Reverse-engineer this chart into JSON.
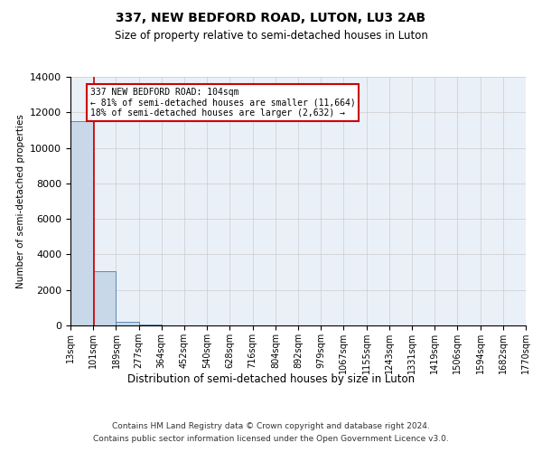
{
  "title": "337, NEW BEDFORD ROAD, LUTON, LU3 2AB",
  "subtitle": "Size of property relative to semi-detached houses in Luton",
  "xlabel": "Distribution of semi-detached houses by size in Luton",
  "ylabel": "Number of semi-detached properties",
  "bin_edges": [
    13,
    101,
    189,
    277,
    364,
    452,
    540,
    628,
    716,
    804,
    892,
    979,
    1067,
    1155,
    1243,
    1331,
    1419,
    1506,
    1594,
    1682,
    1770
  ],
  "bin_labels": [
    "13sqm",
    "101sqm",
    "189sqm",
    "277sqm",
    "364sqm",
    "452sqm",
    "540sqm",
    "628sqm",
    "716sqm",
    "804sqm",
    "892sqm",
    "979sqm",
    "1067sqm",
    "1155sqm",
    "1243sqm",
    "1331sqm",
    "1419sqm",
    "1506sqm",
    "1594sqm",
    "1682sqm",
    "1770sqm"
  ],
  "bar_heights": [
    11500,
    3050,
    220,
    30,
    10,
    5,
    3,
    2,
    1,
    1,
    1,
    0,
    0,
    0,
    0,
    0,
    0,
    0,
    0,
    0
  ],
  "bar_color": "#c8d8e8",
  "bar_edge_color": "#4a7aaa",
  "property_size": 104,
  "pct_smaller": 81,
  "count_smaller": 11664,
  "pct_larger": 18,
  "count_larger": 2632,
  "annotation_line_color": "#cc0000",
  "annotation_box_edge_color": "#cc0000",
  "ylim": [
    0,
    14000
  ],
  "yticks": [
    0,
    2000,
    4000,
    6000,
    8000,
    10000,
    12000,
    14000
  ],
  "grid_color": "#cccccc",
  "background_color": "#eaf0f8",
  "footer_line1": "Contains HM Land Registry data © Crown copyright and database right 2024.",
  "footer_line2": "Contains public sector information licensed under the Open Government Licence v3.0."
}
